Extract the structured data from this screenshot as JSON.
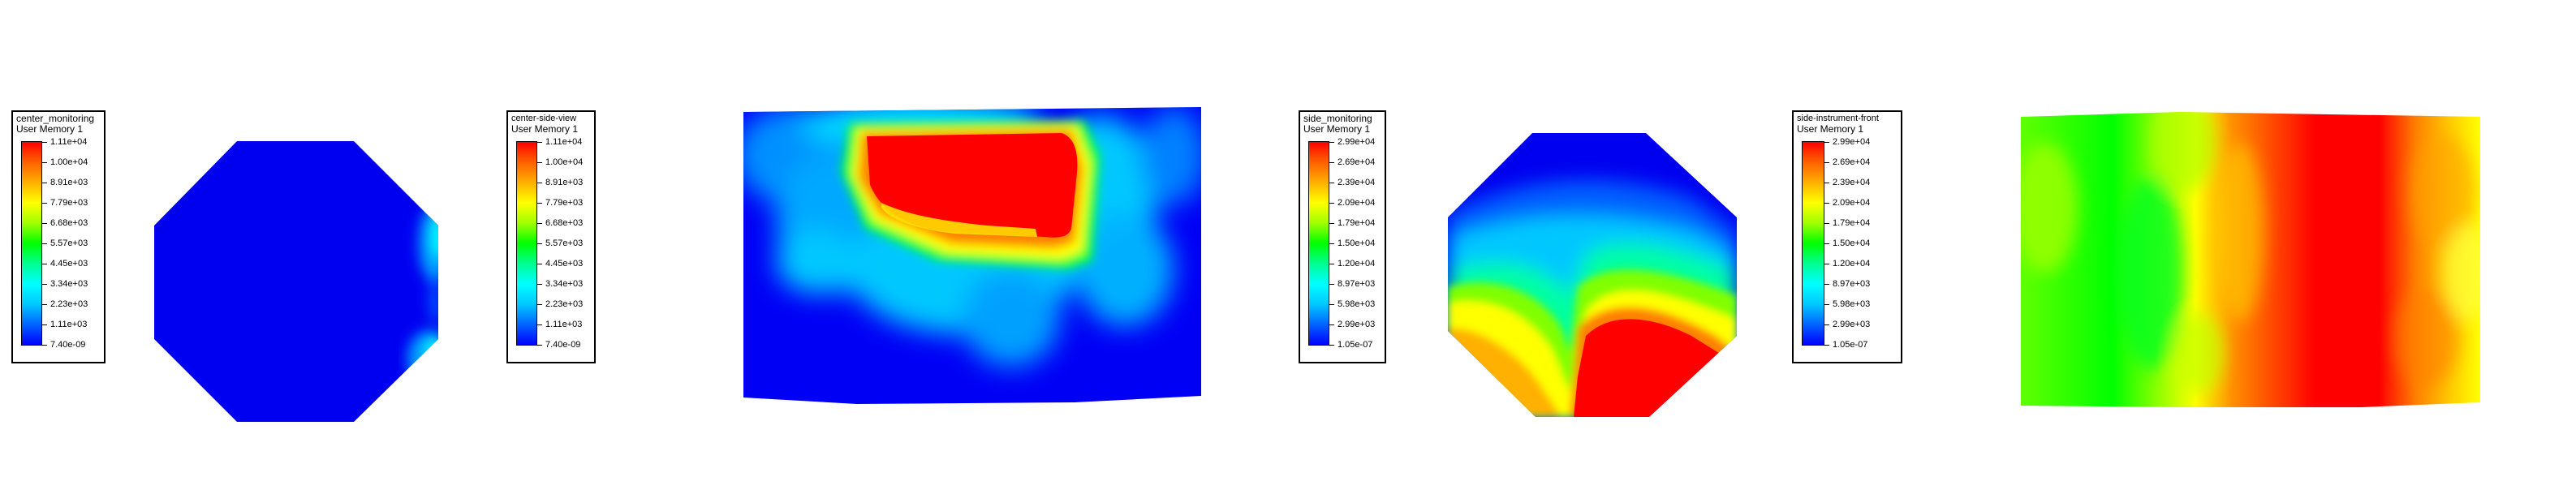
{
  "panels": [
    {
      "id": "center-monitoring",
      "legend_title": "center_monitoring",
      "legend_subtitle": "User Memory 1",
      "ticks": [
        "1.11e+04",
        "1.00e+04",
        "8.91e+03",
        "7.79e+03",
        "6.68e+03",
        "5.57e+03",
        "4.45e+03",
        "3.34e+03",
        "2.23e+03",
        "1.11e+03",
        "7.40e-09"
      ]
    },
    {
      "id": "center-side-view",
      "legend_title": "center-side-view",
      "legend_subtitle": "User Memory 1",
      "ticks": [
        "1.11e+04",
        "1.00e+04",
        "8.91e+03",
        "7.79e+03",
        "6.68e+03",
        "5.57e+03",
        "4.45e+03",
        "3.34e+03",
        "2.23e+03",
        "1.11e+03",
        "7.40e-09"
      ]
    },
    {
      "id": "side-monitoring",
      "legend_title": "side_monitoring",
      "legend_subtitle": "User Memory 1",
      "ticks": [
        "2.99e+04",
        "2.69e+04",
        "2.39e+04",
        "2.09e+04",
        "1.79e+04",
        "1.50e+04",
        "1.20e+04",
        "8.97e+03",
        "5.98e+03",
        "2.99e+03",
        "1.05e-07"
      ]
    },
    {
      "id": "side-instrument-front",
      "legend_title": "side-instrument-front",
      "legend_subtitle": "User Memory 1",
      "ticks": [
        "2.99e+04",
        "2.69e+04",
        "2.39e+04",
        "2.09e+04",
        "1.79e+04",
        "1.50e+04",
        "1.20e+04",
        "8.97e+03",
        "5.98e+03",
        "2.99e+03",
        "1.05e-07"
      ]
    }
  ],
  "colors": {
    "low": "#0000ff",
    "high": "#ff0000",
    "legend_border": "#000000"
  }
}
